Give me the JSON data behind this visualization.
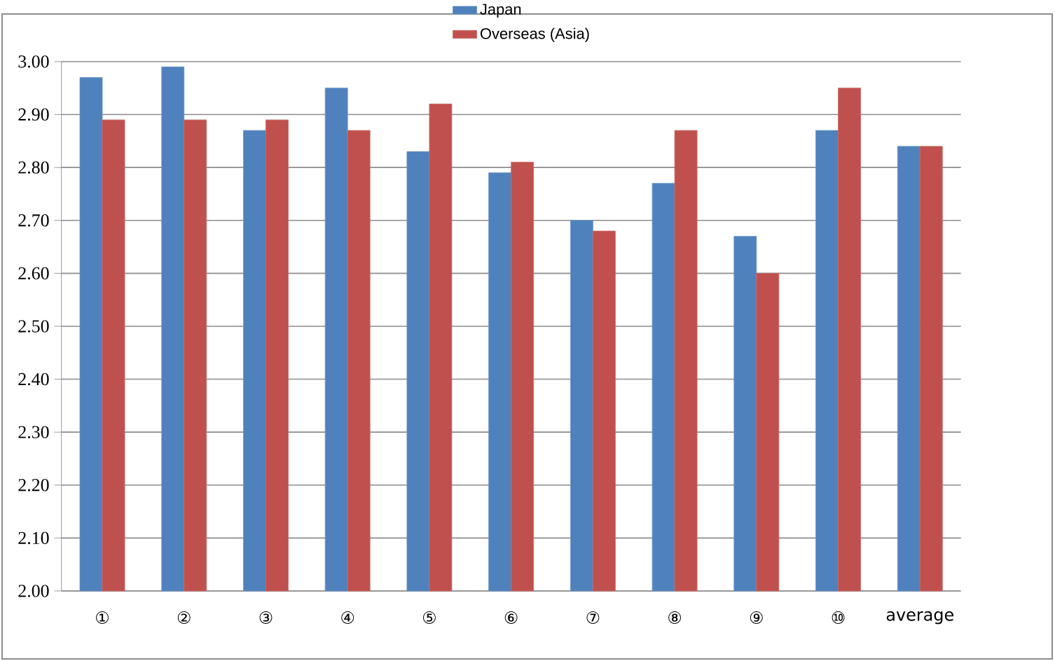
{
  "chart_data": {
    "type": "bar",
    "categories": [
      "①",
      "②",
      "③",
      "④",
      "⑤",
      "⑥",
      "⑦",
      "⑧",
      "⑨",
      "⑩",
      "average"
    ],
    "series": [
      {
        "name": "Japan",
        "color": "#4f81bd",
        "values": [
          2.97,
          2.99,
          2.87,
          2.95,
          2.83,
          2.79,
          2.7,
          2.77,
          2.67,
          2.87,
          2.84
        ]
      },
      {
        "name": "Overseas (Asia)",
        "color": "#c0504d",
        "values": [
          2.89,
          2.89,
          2.89,
          2.87,
          2.92,
          2.81,
          2.68,
          2.87,
          2.6,
          2.95,
          2.84
        ]
      }
    ],
    "ylim": [
      2.0,
      3.0
    ],
    "yticks": [
      {
        "value": 2.0,
        "label": "2.00"
      },
      {
        "value": 2.1,
        "label": "2.10"
      },
      {
        "value": 2.2,
        "label": "2.20"
      },
      {
        "value": 2.3,
        "label": "2.30"
      },
      {
        "value": 2.4,
        "label": "2.40"
      },
      {
        "value": 2.5,
        "label": "2.50"
      },
      {
        "value": 2.6,
        "label": "2.60"
      },
      {
        "value": 2.7,
        "label": "2.70"
      },
      {
        "value": 2.8,
        "label": "2.80"
      },
      {
        "value": 2.9,
        "label": "2.90"
      },
      {
        "value": 3.0,
        "label": "3.00"
      }
    ],
    "grid": "y",
    "legend": "top"
  }
}
